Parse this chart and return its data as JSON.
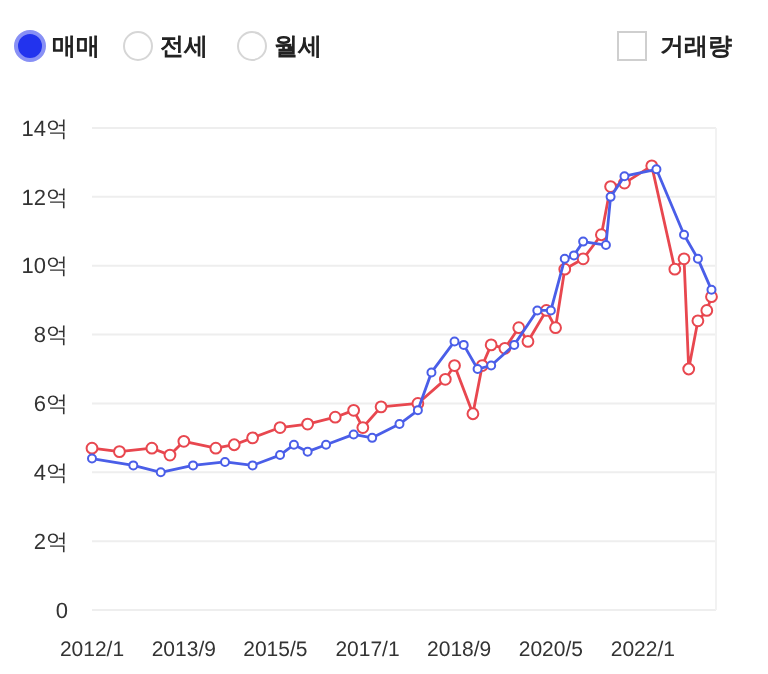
{
  "chart_data": {
    "type": "line",
    "marker": "circle",
    "grid": "y",
    "annotations": [
      "매매",
      "전세",
      "월세",
      "거래량"
    ],
    "xlim": [
      "2012-01",
      "2023-05"
    ],
    "xticks": [
      {
        "value": "2012-01",
        "label": "2012/1"
      },
      {
        "value": "2013-09",
        "label": "2013/9"
      },
      {
        "value": "2015-05",
        "label": "2015/5"
      },
      {
        "value": "2017-01",
        "label": "2017/1"
      },
      {
        "value": "2018-09",
        "label": "2018/9"
      },
      {
        "value": "2020-05",
        "label": "2020/5"
      },
      {
        "value": "2022-01",
        "label": "2022/1"
      }
    ],
    "ylim": [
      0,
      14
    ],
    "yticks": [
      0,
      {
        "value": 2,
        "label": "2억"
      },
      {
        "value": 4,
        "label": "4억"
      },
      {
        "value": 6,
        "label": "6억"
      },
      {
        "value": 8,
        "label": "8억"
      },
      {
        "value": 10,
        "label": "10억"
      },
      {
        "value": 12,
        "label": "12억"
      },
      {
        "value": 14,
        "label": "14억"
      }
    ],
    "series": [
      {
        "color": "#e8474f",
        "x": [
          "2012-01",
          "2012-07",
          "2013-02",
          "2013-06",
          "2013-09",
          "2014-04",
          "2014-08",
          "2014-12",
          "2015-06",
          "2015-12",
          "2016-06",
          "2016-10",
          "2016-12",
          "2017-04",
          "2017-12",
          "2018-06",
          "2018-08",
          "2018-12",
          "2019-02",
          "2019-04",
          "2019-07",
          "2019-10",
          "2019-12",
          "2020-04",
          "2020-06",
          "2020-08",
          "2020-12",
          "2021-04",
          "2021-06",
          "2021-09",
          "2022-03",
          "2022-08",
          "2022-10",
          "2022-11",
          "2023-01",
          "2023-03",
          "2023-04"
        ],
        "values": [
          4.7,
          4.6,
          4.7,
          4.5,
          4.9,
          4.7,
          4.8,
          5.0,
          5.3,
          5.4,
          5.6,
          5.8,
          5.3,
          5.9,
          6.0,
          6.7,
          7.1,
          5.7,
          7.1,
          7.7,
          7.6,
          8.2,
          7.8,
          8.7,
          8.2,
          9.9,
          10.2,
          10.9,
          12.3,
          12.4,
          12.9,
          9.9,
          10.2,
          7.0,
          8.4,
          8.7,
          9.1
        ]
      },
      {
        "color": "#4a5ee8",
        "x": [
          "2012-01",
          "2012-10",
          "2013-04",
          "2013-11",
          "2014-06",
          "2014-12",
          "2015-06",
          "2015-09",
          "2015-12",
          "2016-04",
          "2016-10",
          "2017-02",
          "2017-08",
          "2017-12",
          "2018-03",
          "2018-08",
          "2018-10",
          "2019-01",
          "2019-04",
          "2019-09",
          "2020-02",
          "2020-05",
          "2020-08",
          "2020-10",
          "2020-12",
          "2021-05",
          "2021-06",
          "2021-09",
          "2022-04",
          "2022-10",
          "2023-01",
          "2023-04"
        ],
        "values": [
          4.4,
          4.2,
          4.0,
          4.2,
          4.3,
          4.2,
          4.5,
          4.8,
          4.6,
          4.8,
          5.1,
          5.0,
          5.4,
          5.8,
          6.9,
          7.8,
          7.7,
          7.0,
          7.1,
          7.7,
          8.7,
          8.7,
          10.2,
          10.3,
          10.7,
          10.6,
          12.0,
          12.6,
          12.8,
          10.9,
          10.2,
          9.3
        ]
      }
    ]
  }
}
